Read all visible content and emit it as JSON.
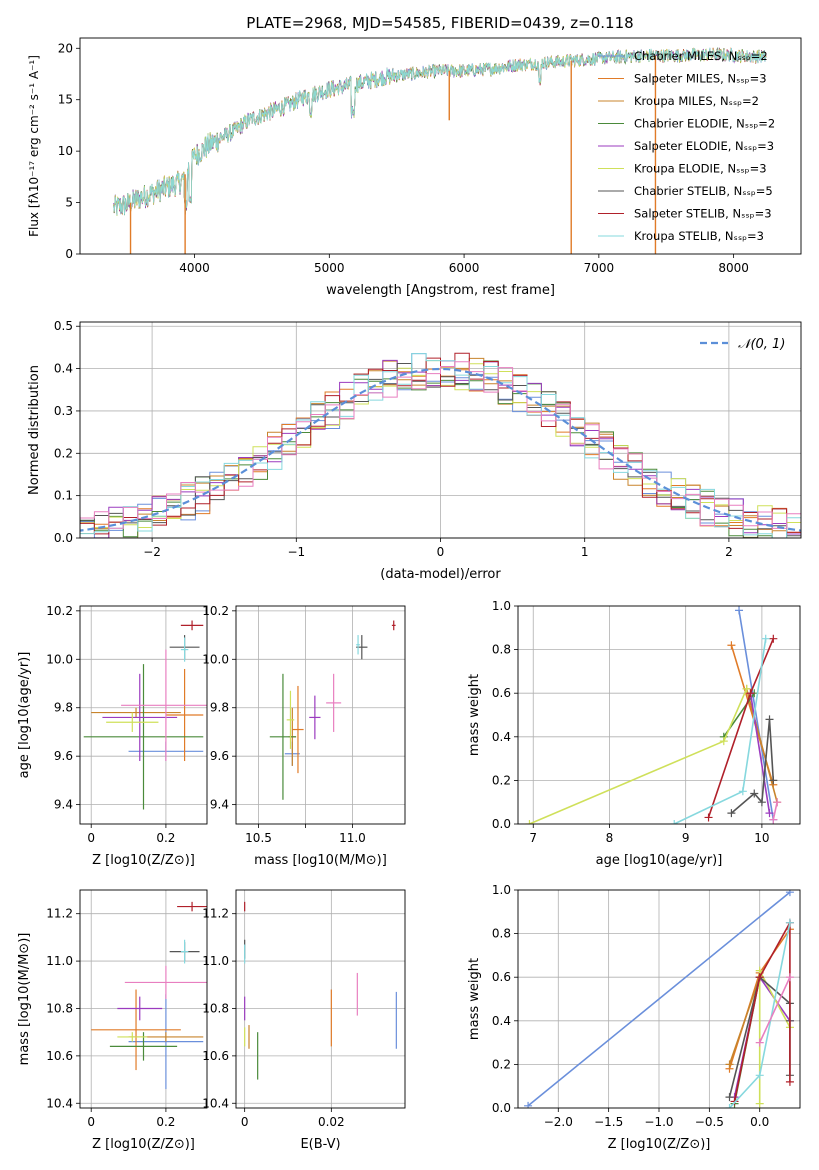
{
  "figure_title": "PLATE=2968, MJD=54585, FIBERID=0439, z=0.118",
  "colors": {
    "Chabrier MILES": "#6a8fdb",
    "Salpeter MILES": "#e07b28",
    "Kroupa MILES": "#c8842c",
    "Chabrier ELODIE": "#4a8a3a",
    "Salpeter ELODIE": "#9b3bbf",
    "Kroupa ELODIE": "#cfe05a",
    "Chabrier STELIB": "#555555",
    "Salpeter STELIB": "#b0202a",
    "Kroupa STELIB": "#86d8de",
    "pink": "#e87fc0"
  },
  "chart_data": [
    {
      "id": "spectrum",
      "type": "line",
      "title": "PLATE=2968, MJD=54585, FIBERID=0439, z=0.118",
      "xlabel": "wavelength [Angstrom, rest frame]",
      "ylabel": "Flux [fλ10⁻¹⁷ erg cm⁻² s⁻¹ A⁻¹]",
      "xlim": [
        3150,
        8500
      ],
      "ylim": [
        0,
        21
      ],
      "xticks": [
        4000,
        5000,
        6000,
        7000,
        8000
      ],
      "yticks": [
        0,
        5,
        10,
        15,
        20
      ],
      "legend_position": "right",
      "legend": [
        "Chabrier MILES, N_SSP=2",
        "Salpeter MILES, N_SSP=3",
        "Kroupa MILES, N_SSP=2",
        "Chabrier ELODIE, N_SSP=2",
        "Salpeter ELODIE, N_SSP=3",
        "Kroupa ELODIE, N_SSP=3",
        "Chabrier STELIB, N_SSP=5",
        "Salpeter STELIB, N_SSP=3",
        "Kroupa STELIB, N_SSP=3"
      ],
      "continuum": {
        "x": [
          3400,
          3500,
          3600,
          3700,
          3800,
          3900,
          4000,
          4100,
          4200,
          4300,
          4400,
          4500,
          4600,
          4700,
          4800,
          4900,
          5000,
          5200,
          5400,
          5600,
          5800,
          6000,
          6200,
          6400,
          6600,
          6800,
          7000,
          7200,
          7400,
          7600,
          7800,
          8000,
          8200
        ],
        "y": [
          4.5,
          4.8,
          5.5,
          6.0,
          6.5,
          7.0,
          9.5,
          10.5,
          11.3,
          12.0,
          13.0,
          13.5,
          14.0,
          14.5,
          15.2,
          15.6,
          16.0,
          16.5,
          17.2,
          17.5,
          17.8,
          17.8,
          18.0,
          18.4,
          18.6,
          18.8,
          19.0,
          19.2,
          19.3,
          19.3,
          19.4,
          19.3,
          19.2
        ]
      },
      "drops": [
        {
          "x": 3525,
          "y": 0
        },
        {
          "x": 3930,
          "y": 0
        },
        {
          "x": 5890,
          "y": 13
        },
        {
          "x": 6795,
          "y": 0
        },
        {
          "x": 7420,
          "y": 0
        }
      ]
    },
    {
      "id": "residuals",
      "type": "histogram",
      "xlabel": "(data-model)/error",
      "ylabel": "Normed distribution",
      "xlim": [
        -2.5,
        2.5
      ],
      "ylim": [
        0,
        0.51
      ],
      "xticks": [
        -2,
        -1,
        0,
        1,
        2
      ],
      "yticks": [
        0.0,
        0.1,
        0.2,
        0.3,
        0.4,
        0.5
      ],
      "legend": [
        "𝒩(0, 1)"
      ],
      "legend_position": "top-right",
      "bin_edges": [
        -2.6,
        -2.5,
        -2.4,
        -2.3,
        -2.2,
        -2.1,
        -2.0,
        -1.9,
        -1.8,
        -1.7,
        -1.6,
        -1.5,
        -1.4,
        -1.3,
        -1.2,
        -1.1,
        -1.0,
        -0.9,
        -0.8,
        -0.7,
        -0.6,
        -0.5,
        -0.4,
        -0.3,
        -0.2,
        -0.1,
        0.0,
        0.1,
        0.2,
        0.3,
        0.4,
        0.5,
        0.6,
        0.7,
        0.8,
        0.9,
        1.0,
        1.1,
        1.2,
        1.3,
        1.4,
        1.5,
        1.6,
        1.7,
        1.8,
        1.9,
        2.0,
        2.1,
        2.2,
        2.3,
        2.4,
        2.5,
        2.6
      ],
      "gaussian_peak": 0.399
    },
    {
      "id": "age_vs_Z",
      "type": "scatter",
      "xlabel": "Z [log10(Z/Z⊙)]",
      "ylabel": "age [log10(age/yr)]",
      "xlim": [
        -0.03,
        0.31
      ],
      "ylim": [
        9.32,
        10.22
      ],
      "xticks": [
        0.0,
        0.2
      ],
      "yticks": [
        9.4,
        9.6,
        9.8,
        10.0,
        10.2
      ],
      "points": [
        {
          "c": "Chabrier MILES",
          "x": 0.2,
          "y": 9.62,
          "xe": 0.1,
          "ye": 0.04
        },
        {
          "c": "Salpeter MILES",
          "x": 0.25,
          "y": 9.77,
          "xe": 0.05,
          "ye": 0.19
        },
        {
          "c": "Kroupa MILES",
          "x": 0.12,
          "y": 9.78,
          "xe": 0.12,
          "ye": 0.02
        },
        {
          "c": "Chabrier ELODIE",
          "x": 0.14,
          "y": 9.68,
          "xe": 0.16,
          "ye": 0.3
        },
        {
          "c": "Salpeter ELODIE",
          "x": 0.13,
          "y": 9.76,
          "xe": 0.1,
          "ye": 0.18
        },
        {
          "c": "Kroupa ELODIE",
          "x": 0.11,
          "y": 9.74,
          "xe": 0.07,
          "ye": 0.04
        },
        {
          "c": "Chabrier STELIB",
          "x": 0.25,
          "y": 10.05,
          "xe": 0.04,
          "ye": 0.05
        },
        {
          "c": "Salpeter STELIB",
          "x": 0.27,
          "y": 10.14,
          "xe": 0.03,
          "ye": 0.02
        },
        {
          "c": "Kroupa STELIB",
          "x": 0.25,
          "y": 10.04,
          "xe": 0.01,
          "ye": 0.05
        },
        {
          "c": "pink",
          "x": 0.2,
          "y": 9.81,
          "xe": 0.12,
          "ye": 0.23
        }
      ]
    },
    {
      "id": "age_vs_mass",
      "type": "scatter",
      "xlabel": "mass [log10(M/M⊙)]",
      "ylabel": "",
      "xlim": [
        10.38,
        11.28
      ],
      "ylim": [
        9.32,
        10.22
      ],
      "xticks": [
        10.5,
        10.75,
        11.0
      ],
      "xticklabels": [
        "10.5",
        "",
        "11.0"
      ],
      "yticks": [
        9.4,
        9.6,
        9.8,
        10.0,
        10.2
      ],
      "points": [
        {
          "c": "Chabrier MILES",
          "x": 10.68,
          "y": 9.61,
          "xe": 0.04,
          "ye": 0.05
        },
        {
          "c": "Salpeter MILES",
          "x": 10.71,
          "y": 9.71,
          "xe": 0.03,
          "ye": 0.18
        },
        {
          "c": "Kroupa MILES",
          "x": 10.68,
          "y": 9.68,
          "xe": 0.02,
          "ye": 0.12
        },
        {
          "c": "Chabrier ELODIE",
          "x": 10.63,
          "y": 9.68,
          "xe": 0.07,
          "ye": 0.26
        },
        {
          "c": "Salpeter ELODIE",
          "x": 10.8,
          "y": 9.76,
          "xe": 0.03,
          "ye": 0.09
        },
        {
          "c": "Kroupa ELODIE",
          "x": 10.67,
          "y": 9.75,
          "xe": 0.02,
          "ye": 0.12
        },
        {
          "c": "Chabrier STELIB",
          "x": 11.05,
          "y": 10.05,
          "xe": 0.03,
          "ye": 0.05
        },
        {
          "c": "Salpeter STELIB",
          "x": 11.22,
          "y": 10.14,
          "xe": 0.01,
          "ye": 0.02
        },
        {
          "c": "Kroupa STELIB",
          "x": 11.03,
          "y": 10.06,
          "xe": 0.01,
          "ye": 0.04
        },
        {
          "c": "pink",
          "x": 10.9,
          "y": 9.82,
          "xe": 0.04,
          "ye": 0.12
        }
      ]
    },
    {
      "id": "weight_vs_age",
      "type": "line",
      "xlabel": "age [log10(age/yr)]",
      "ylabel": "mass weight",
      "xlim": [
        6.8,
        10.5
      ],
      "ylim": [
        0,
        1.0
      ],
      "xticks": [
        7,
        8,
        9,
        10
      ],
      "yticks": [
        0.0,
        0.2,
        0.4,
        0.6,
        0.8,
        1.0
      ],
      "series": [
        {
          "c": "Chabrier MILES",
          "x": [
            9.7,
            10.15
          ],
          "y": [
            0.98,
            0.02
          ]
        },
        {
          "c": "Salpeter MILES",
          "x": [
            9.6,
            10.15
          ],
          "y": [
            0.82,
            0.18
          ]
        },
        {
          "c": "Kroupa MILES",
          "x": [
            9.8,
            10.2
          ],
          "y": [
            0.62,
            0.1
          ]
        },
        {
          "c": "Chabrier ELODIE",
          "x": [
            9.5,
            9.9
          ],
          "y": [
            0.4,
            0.6
          ]
        },
        {
          "c": "Salpeter ELODIE",
          "x": [
            9.85,
            10.1
          ],
          "y": [
            0.6,
            0.05
          ]
        },
        {
          "c": "Kroupa ELODIE",
          "x": [
            6.95,
            9.5,
            9.8
          ],
          "y": [
            0.0,
            0.38,
            0.62
          ]
        },
        {
          "c": "Chabrier STELIB",
          "x": [
            9.6,
            9.9,
            10.0,
            10.1,
            10.15
          ],
          "y": [
            0.05,
            0.14,
            0.1,
            0.48,
            0.2
          ]
        },
        {
          "c": "Salpeter STELIB",
          "x": [
            9.3,
            9.85,
            10.15
          ],
          "y": [
            0.03,
            0.6,
            0.85
          ]
        },
        {
          "c": "Kroupa STELIB",
          "x": [
            8.85,
            9.75,
            10.05
          ],
          "y": [
            0.0,
            0.15,
            0.85
          ]
        },
        {
          "c": "pink",
          "x": [
            10.15,
            10.2
          ],
          "y": [
            0.02,
            0.1
          ]
        }
      ]
    },
    {
      "id": "mass_vs_Z",
      "type": "scatter",
      "xlabel": "Z [log10(Z/Z⊙)]",
      "ylabel": "mass [log10(M/M⊙)]",
      "xlim": [
        -0.03,
        0.31
      ],
      "ylim": [
        10.38,
        11.3
      ],
      "xticks": [
        0.0,
        0.2
      ],
      "yticks": [
        10.4,
        10.6,
        10.8,
        11.0,
        11.2
      ],
      "points": [
        {
          "c": "Chabrier MILES",
          "x": 0.2,
          "y": 10.66,
          "xe": 0.1,
          "ye": 0.2
        },
        {
          "c": "Salpeter MILES",
          "x": 0.12,
          "y": 10.71,
          "xe": 0.12,
          "ye": 0.17
        },
        {
          "c": "Kroupa MILES",
          "x": 0.2,
          "y": 10.68,
          "xe": 0.1,
          "ye": 0.02
        },
        {
          "c": "Chabrier ELODIE",
          "x": 0.14,
          "y": 10.64,
          "xe": 0.09,
          "ye": 0.06
        },
        {
          "c": "Salpeter ELODIE",
          "x": 0.13,
          "y": 10.8,
          "xe": 0.06,
          "ye": 0.05
        },
        {
          "c": "Kroupa ELODIE",
          "x": 0.11,
          "y": 10.68,
          "xe": 0.04,
          "ye": 0.02
        },
        {
          "c": "Chabrier STELIB",
          "x": 0.25,
          "y": 11.04,
          "xe": 0.04,
          "ye": 0.04
        },
        {
          "c": "Salpeter STELIB",
          "x": 0.27,
          "y": 11.23,
          "xe": 0.04,
          "ye": 0.02
        },
        {
          "c": "Kroupa STELIB",
          "x": 0.25,
          "y": 11.04,
          "xe": 0.01,
          "ye": 0.05
        },
        {
          "c": "pink",
          "x": 0.2,
          "y": 10.91,
          "xe": 0.11,
          "ye": 0.07
        }
      ]
    },
    {
      "id": "mass_vs_ebv",
      "type": "scatter",
      "xlabel": "E(B-V)",
      "ylabel": "",
      "xlim": [
        -0.002,
        0.037
      ],
      "ylim": [
        10.38,
        11.3
      ],
      "xticks": [
        0.0,
        0.02
      ],
      "yticks": [
        10.4,
        10.6,
        10.8,
        11.0,
        11.2
      ],
      "points": [
        {
          "c": "Chabrier MILES",
          "x": 0.035,
          "y": 10.75,
          "xe": 0.0,
          "ye": 0.12
        },
        {
          "c": "Salpeter MILES",
          "x": 0.02,
          "y": 10.76,
          "xe": 0.0,
          "ye": 0.12
        },
        {
          "c": "Kroupa MILES",
          "x": 0.001,
          "y": 10.68,
          "xe": 0.0,
          "ye": 0.05
        },
        {
          "c": "Chabrier ELODIE",
          "x": 0.003,
          "y": 10.6,
          "xe": 0.0,
          "ye": 0.1
        },
        {
          "c": "Salpeter ELODIE",
          "x": 0.0,
          "y": 10.8,
          "xe": 0.0,
          "ye": 0.05
        },
        {
          "c": "Kroupa ELODIE",
          "x": 0.0,
          "y": 10.68,
          "xe": 0.0,
          "ye": 0.04
        },
        {
          "c": "Chabrier STELIB",
          "x": 0.0,
          "y": 11.05,
          "xe": 0.0,
          "ye": 0.04
        },
        {
          "c": "Salpeter STELIB",
          "x": 0.0,
          "y": 11.23,
          "xe": 0.0,
          "ye": 0.02
        },
        {
          "c": "Kroupa STELIB",
          "x": 0.0,
          "y": 11.03,
          "xe": 0.0,
          "ye": 0.04
        },
        {
          "c": "pink",
          "x": 0.026,
          "y": 10.86,
          "xe": 0.0,
          "ye": 0.09
        }
      ]
    },
    {
      "id": "weight_vs_Z",
      "type": "line",
      "xlabel": "Z [log10(Z/Z⊙)]",
      "ylabel": "mass weight",
      "xlim": [
        -2.4,
        0.4
      ],
      "ylim": [
        0,
        1.0
      ],
      "xticks": [
        -2.0,
        -1.5,
        -1.0,
        -0.5,
        0.0
      ],
      "yticks": [
        0.0,
        0.2,
        0.4,
        0.6,
        0.8,
        1.0
      ],
      "series": [
        {
          "c": "Chabrier MILES",
          "x": [
            -2.3,
            0.3
          ],
          "y": [
            0.01,
            0.99
          ]
        },
        {
          "c": "Salpeter MILES",
          "x": [
            -0.3,
            0.0,
            0.3
          ],
          "y": [
            0.18,
            0.62,
            0.82
          ]
        },
        {
          "c": "Kroupa MILES",
          "x": [
            -0.3,
            0.0
          ],
          "y": [
            0.2,
            0.6
          ]
        },
        {
          "c": "Chabrier ELODIE",
          "x": [
            -0.25,
            0.0
          ],
          "y": [
            0.02,
            0.6
          ]
        },
        {
          "c": "Salpeter ELODIE",
          "x": [
            -0.25,
            0.0,
            0.3
          ],
          "y": [
            0.05,
            0.6,
            0.4
          ]
        },
        {
          "c": "Kroupa ELODIE",
          "x": [
            0.0,
            0.0,
            0.3
          ],
          "y": [
            0.02,
            0.63,
            0.37
          ]
        },
        {
          "c": "Chabrier STELIB",
          "x": [
            -0.3,
            0.0,
            0.3,
            0.3,
            0.3
          ],
          "y": [
            0.05,
            0.6,
            0.48,
            0.4,
            0.15
          ]
        },
        {
          "c": "Salpeter STELIB",
          "x": [
            -0.25,
            0.0,
            0.3,
            0.3
          ],
          "y": [
            0.03,
            0.6,
            0.85,
            0.12
          ]
        },
        {
          "c": "Kroupa STELIB",
          "x": [
            -0.3,
            0.0,
            0.3
          ],
          "y": [
            0.0,
            0.15,
            0.85
          ]
        },
        {
          "c": "pink",
          "x": [
            0.0,
            0.3
          ],
          "y": [
            0.3,
            0.6
          ]
        }
      ]
    }
  ]
}
